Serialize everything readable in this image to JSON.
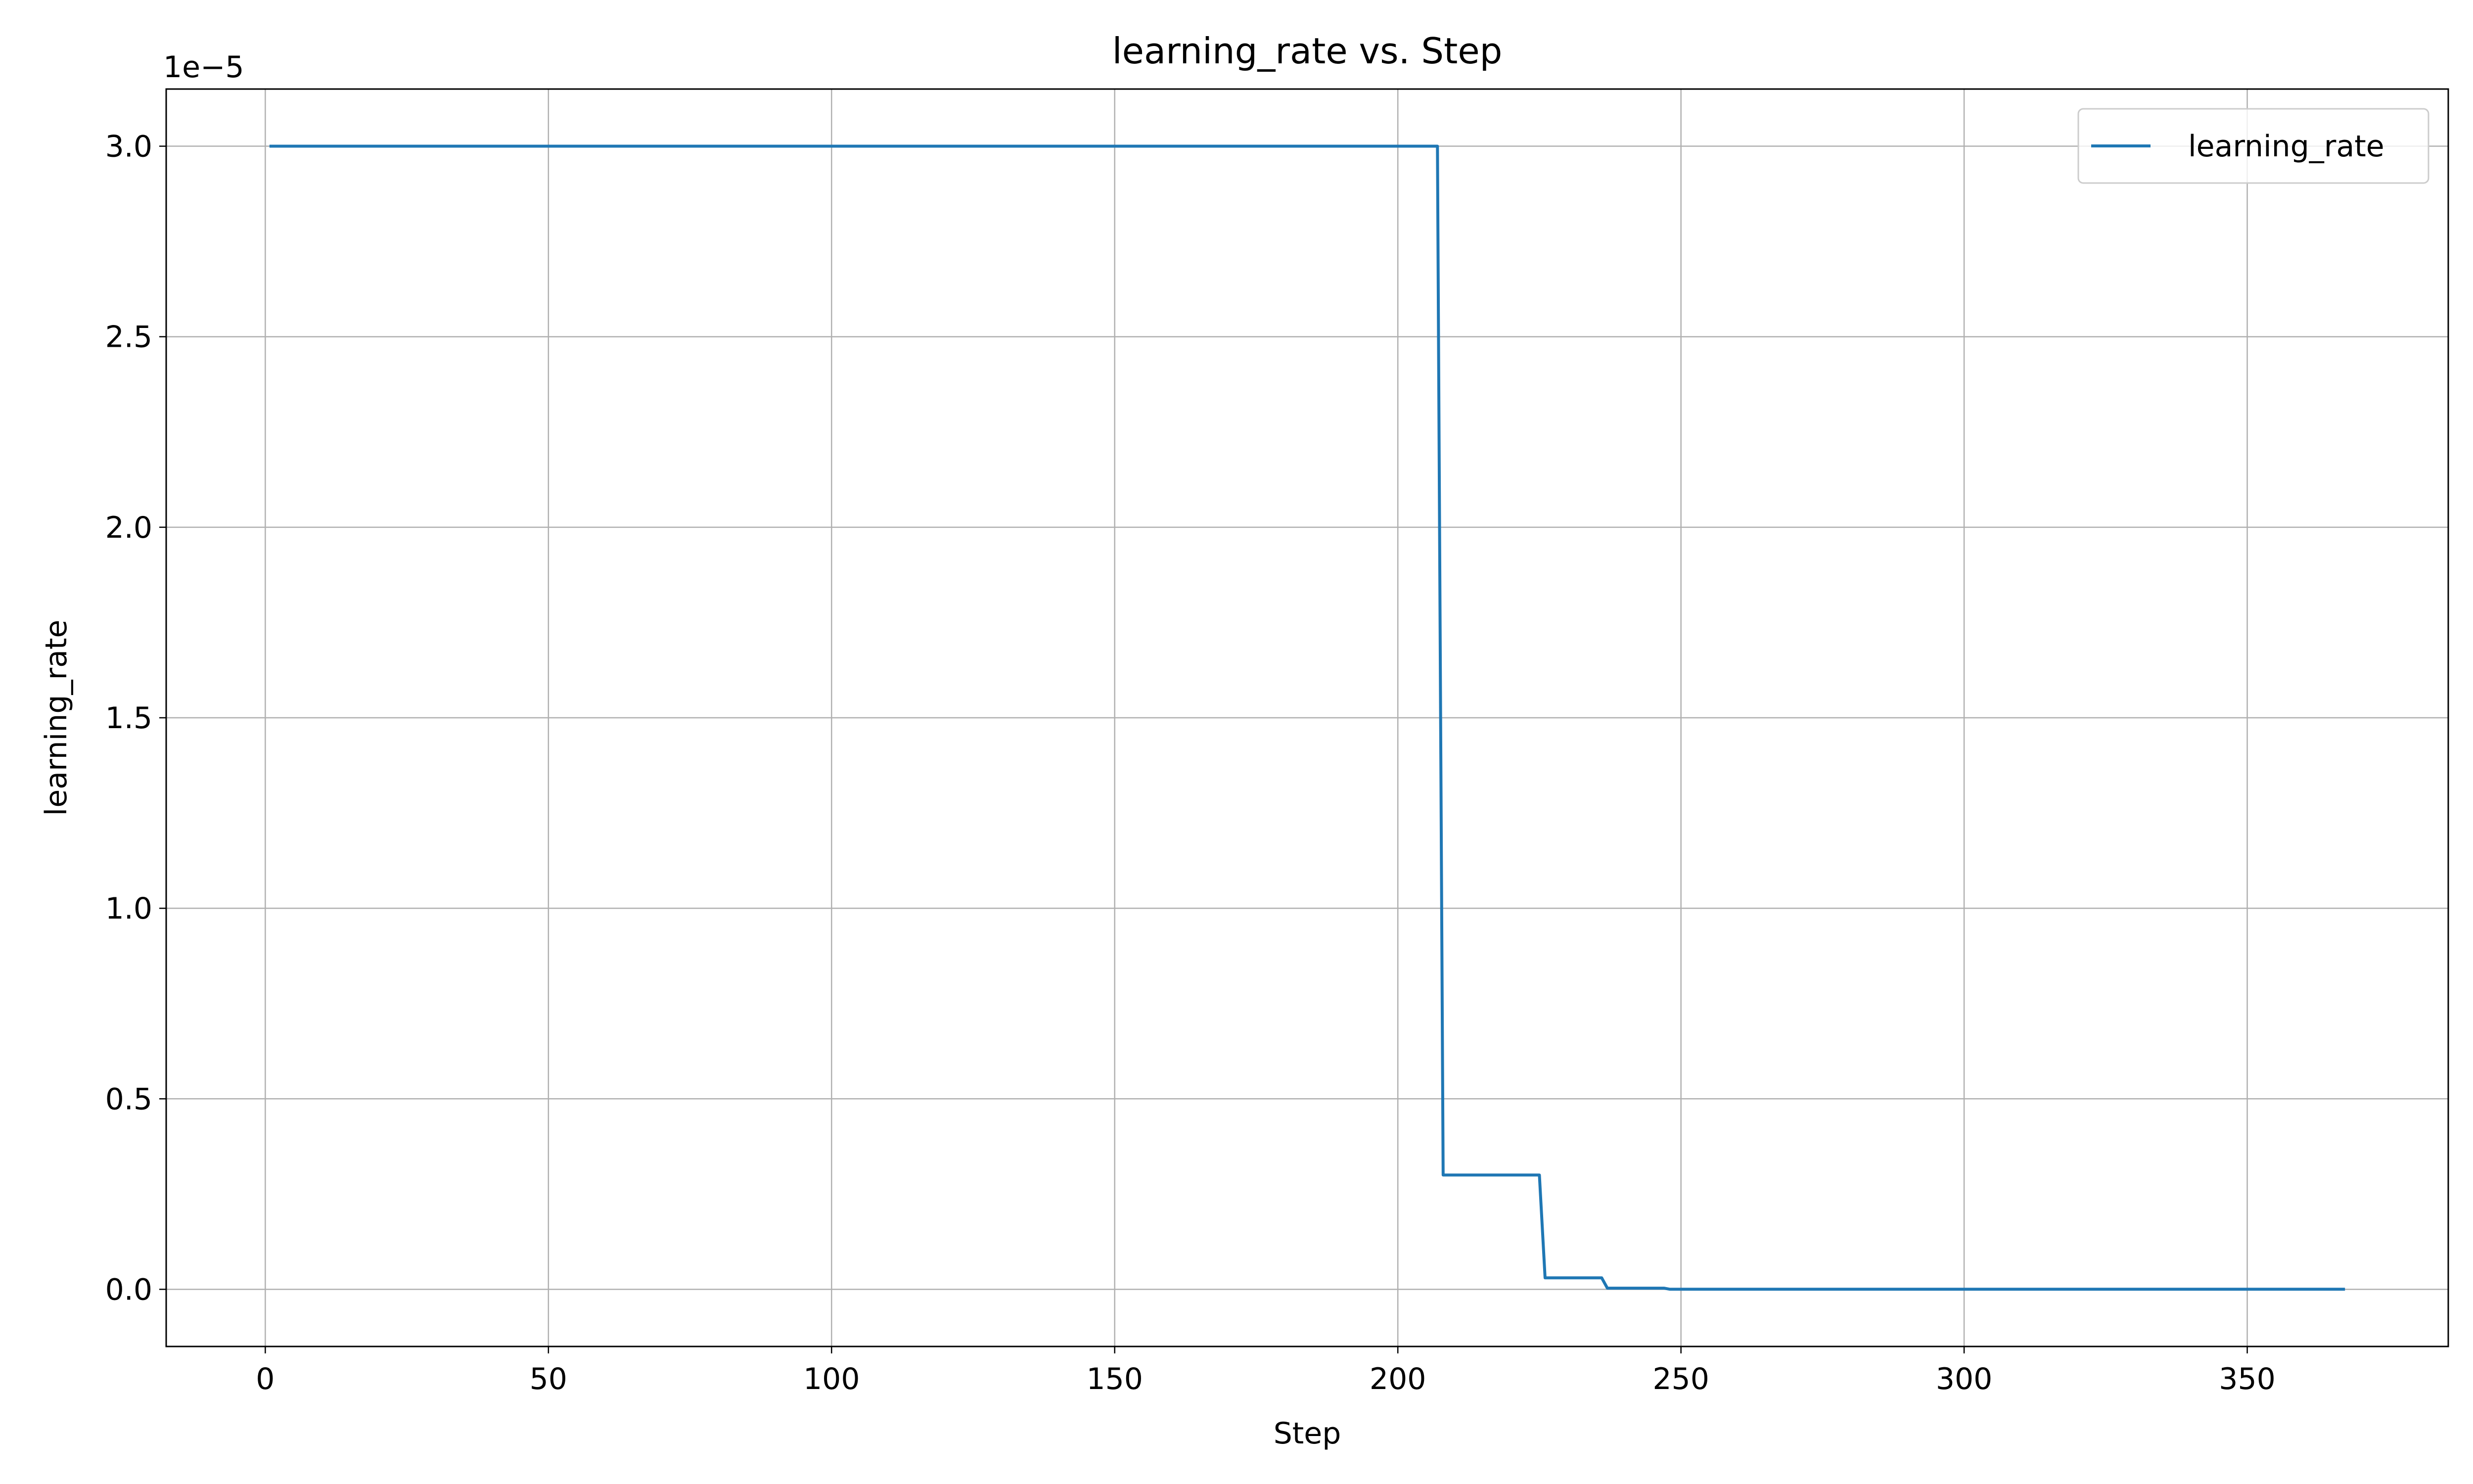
{
  "chart_data": {
    "type": "line",
    "title": "learning_rate vs. Step",
    "xlabel": "Step",
    "ylabel": "learning_rate",
    "y_offset_label": "1e−5",
    "xlim": [
      -17.5,
      385.5
    ],
    "ylim": [
      -0.15,
      3.15
    ],
    "x_ticks": [
      0,
      50,
      100,
      150,
      200,
      250,
      300,
      350
    ],
    "y_ticks": [
      0.0,
      0.5,
      1.0,
      1.5,
      2.0,
      2.5,
      3.0
    ],
    "y_tick_labels": [
      "0.0",
      "0.5",
      "1.0",
      "1.5",
      "2.0",
      "2.5",
      "3.0"
    ],
    "grid": true,
    "legend": {
      "placement": "top-right"
    },
    "series": [
      {
        "name": "learning_rate",
        "color": "#1f77b4",
        "x": [
          1,
          207,
          208,
          225,
          226,
          236,
          237,
          247,
          248,
          367
        ],
        "y": [
          3.0,
          3.0,
          0.3,
          0.3,
          0.03,
          0.03,
          0.003,
          0.003,
          0.0003,
          0.0003
        ]
      }
    ]
  }
}
